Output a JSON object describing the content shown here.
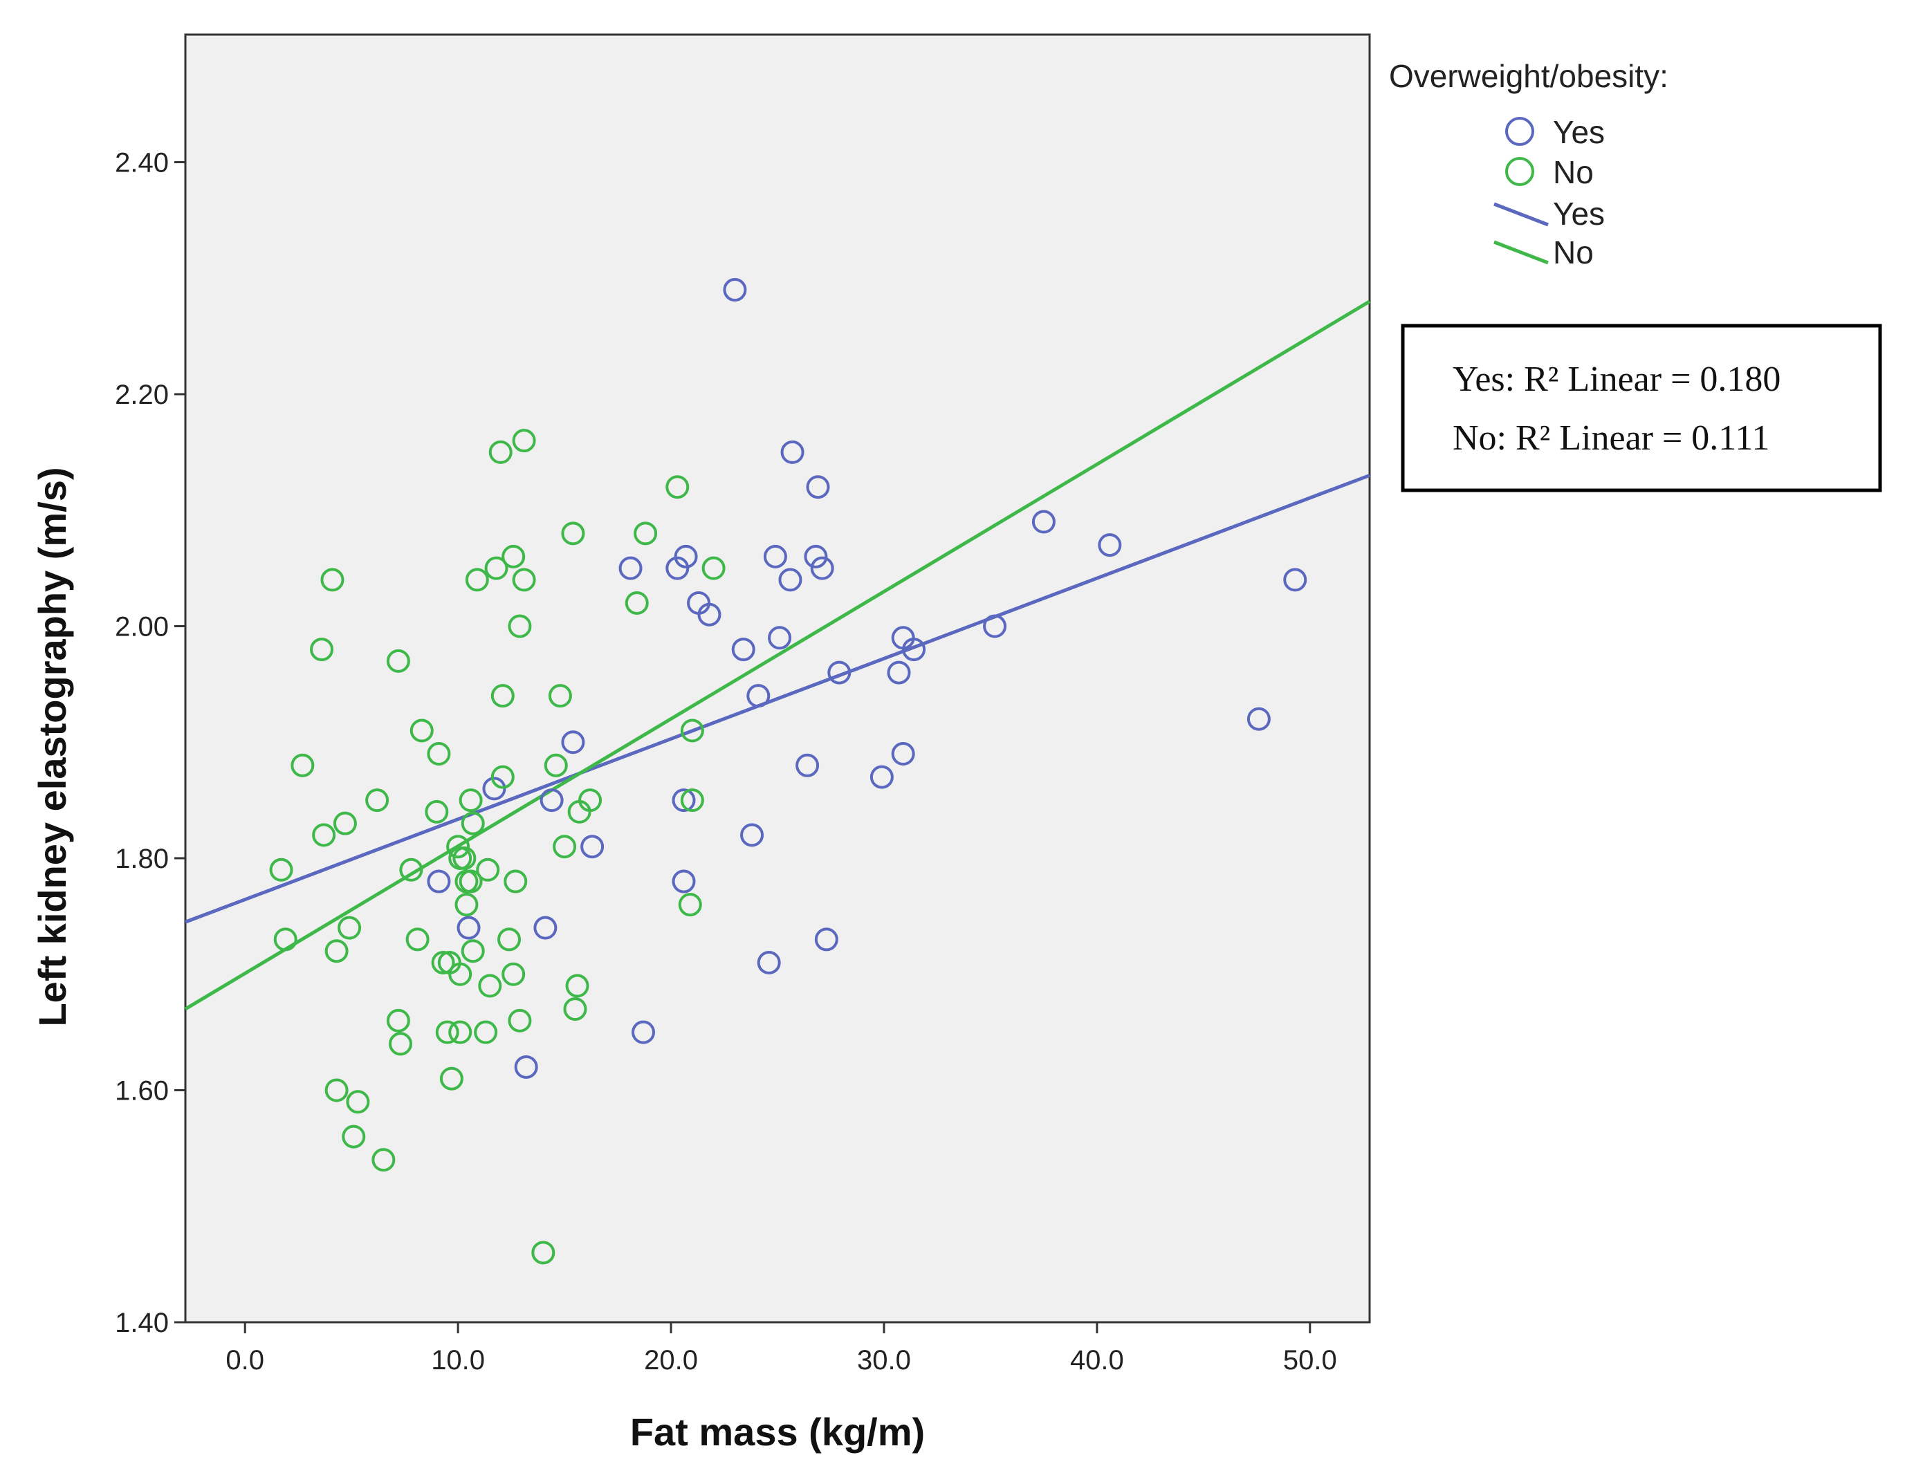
{
  "chart_data": {
    "type": "scatter",
    "title": "",
    "xlabel": "Fat mass (kg/m)",
    "ylabel": "Left kidney elastography (m/s)",
    "xlim": [
      -2.8,
      52.8
    ],
    "ylim": [
      1.4,
      2.51
    ],
    "x_ticks": [
      0.0,
      10.0,
      20.0,
      30.0,
      40.0,
      50.0
    ],
    "x_tick_labels": [
      "0.0",
      "10.0",
      "20.0",
      "30.0",
      "40.0",
      "50.0"
    ],
    "y_ticks": [
      1.4,
      1.6,
      1.8,
      2.0,
      2.2,
      2.4
    ],
    "y_tick_labels": [
      "1.40",
      "1.60",
      "1.80",
      "2.00",
      "2.20",
      "2.40"
    ],
    "grid": false,
    "background": "#f0f0f0",
    "legend": {
      "title": "Overweight/obesity:",
      "placement": "right",
      "entries": [
        {
          "kind": "marker",
          "label": "Yes",
          "series": "Yes"
        },
        {
          "kind": "marker",
          "label": "No",
          "series": "No"
        },
        {
          "kind": "line",
          "label": "Yes",
          "series": "Yes"
        },
        {
          "kind": "line",
          "label": "No",
          "series": "No"
        }
      ]
    },
    "annotation": {
      "lines": [
        "Yes: R² Linear = 0.180",
        "No: R² Linear = 0.111"
      ]
    },
    "series": [
      {
        "name": "Yes",
        "color": "#5b68c0",
        "fit": {
          "x": [
            -2.8,
            52.8
          ],
          "y": [
            1.745,
            2.13
          ]
        },
        "points": [
          [
            23.0,
            2.29
          ],
          [
            25.7,
            2.15
          ],
          [
            26.9,
            2.12
          ],
          [
            24.9,
            2.06
          ],
          [
            26.8,
            2.06
          ],
          [
            20.7,
            2.06
          ],
          [
            18.1,
            2.05
          ],
          [
            20.3,
            2.05
          ],
          [
            27.1,
            2.05
          ],
          [
            25.6,
            2.04
          ],
          [
            21.3,
            2.02
          ],
          [
            21.8,
            2.01
          ],
          [
            25.1,
            1.99
          ],
          [
            23.4,
            1.98
          ],
          [
            30.9,
            1.99
          ],
          [
            31.4,
            1.98
          ],
          [
            35.2,
            2.0
          ],
          [
            37.5,
            2.09
          ],
          [
            40.6,
            2.07
          ],
          [
            49.3,
            2.04
          ],
          [
            47.6,
            1.92
          ],
          [
            27.9,
            1.96
          ],
          [
            30.7,
            1.96
          ],
          [
            24.1,
            1.94
          ],
          [
            15.4,
            1.9
          ],
          [
            26.4,
            1.88
          ],
          [
            30.9,
            1.89
          ],
          [
            29.9,
            1.87
          ],
          [
            11.7,
            1.86
          ],
          [
            14.4,
            1.85
          ],
          [
            20.6,
            1.85
          ],
          [
            16.3,
            1.81
          ],
          [
            23.8,
            1.82
          ],
          [
            9.1,
            1.78
          ],
          [
            20.6,
            1.78
          ],
          [
            10.5,
            1.74
          ],
          [
            14.1,
            1.74
          ],
          [
            27.3,
            1.73
          ],
          [
            24.6,
            1.71
          ],
          [
            18.7,
            1.65
          ],
          [
            13.2,
            1.62
          ]
        ]
      },
      {
        "name": "No",
        "color": "#3fb84a",
        "fit": {
          "x": [
            -2.8,
            52.8
          ],
          "y": [
            1.67,
            2.28
          ]
        },
        "points": [
          [
            13.1,
            2.16
          ],
          [
            12.0,
            2.15
          ],
          [
            20.3,
            2.12
          ],
          [
            15.4,
            2.08
          ],
          [
            18.8,
            2.08
          ],
          [
            12.6,
            2.06
          ],
          [
            11.8,
            2.05
          ],
          [
            22.0,
            2.05
          ],
          [
            4.1,
            2.04
          ],
          [
            10.9,
            2.04
          ],
          [
            13.1,
            2.04
          ],
          [
            18.4,
            2.02
          ],
          [
            12.9,
            2.0
          ],
          [
            3.6,
            1.98
          ],
          [
            7.2,
            1.97
          ],
          [
            12.1,
            1.94
          ],
          [
            14.8,
            1.94
          ],
          [
            8.3,
            1.91
          ],
          [
            21.0,
            1.91
          ],
          [
            9.1,
            1.89
          ],
          [
            2.7,
            1.88
          ],
          [
            14.6,
            1.88
          ],
          [
            12.1,
            1.87
          ],
          [
            6.2,
            1.85
          ],
          [
            10.6,
            1.85
          ],
          [
            16.2,
            1.85
          ],
          [
            21.0,
            1.85
          ],
          [
            9.0,
            1.84
          ],
          [
            15.7,
            1.84
          ],
          [
            10.7,
            1.83
          ],
          [
            4.7,
            1.83
          ],
          [
            3.7,
            1.82
          ],
          [
            10.0,
            1.81
          ],
          [
            15.0,
            1.81
          ],
          [
            10.1,
            1.8
          ],
          [
            10.3,
            1.8
          ],
          [
            1.7,
            1.79
          ],
          [
            7.8,
            1.79
          ],
          [
            11.4,
            1.79
          ],
          [
            10.4,
            1.78
          ],
          [
            10.6,
            1.78
          ],
          [
            12.7,
            1.78
          ],
          [
            10.4,
            1.76
          ],
          [
            20.9,
            1.76
          ],
          [
            4.9,
            1.74
          ],
          [
            1.9,
            1.73
          ],
          [
            8.1,
            1.73
          ],
          [
            12.4,
            1.73
          ],
          [
            4.3,
            1.72
          ],
          [
            10.7,
            1.72
          ],
          [
            9.3,
            1.71
          ],
          [
            9.6,
            1.71
          ],
          [
            10.1,
            1.7
          ],
          [
            12.6,
            1.7
          ],
          [
            11.5,
            1.69
          ],
          [
            15.6,
            1.69
          ],
          [
            7.2,
            1.66
          ],
          [
            12.9,
            1.66
          ],
          [
            15.5,
            1.67
          ],
          [
            7.3,
            1.64
          ],
          [
            9.5,
            1.65
          ],
          [
            10.1,
            1.65
          ],
          [
            11.3,
            1.65
          ],
          [
            9.7,
            1.61
          ],
          [
            4.3,
            1.6
          ],
          [
            5.3,
            1.59
          ],
          [
            5.1,
            1.56
          ],
          [
            6.5,
            1.54
          ],
          [
            14.0,
            1.46
          ]
        ]
      }
    ]
  }
}
